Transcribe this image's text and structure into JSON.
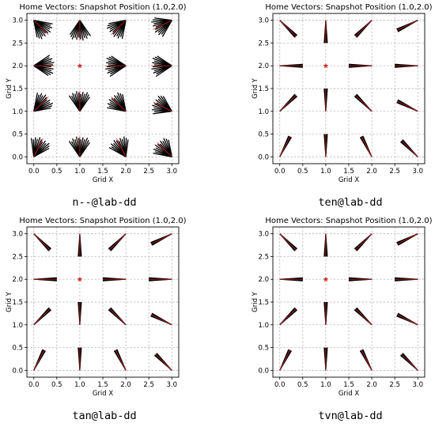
{
  "chart_data": [
    {
      "type": "vector-field",
      "title": "Home Vectors: Snapshot Position (1.0,2.0)",
      "xlabel": "Grid X",
      "ylabel": "Grid Y",
      "caption": "n--@lab-dd",
      "xlim": [
        -0.15,
        3.15
      ],
      "ylim": [
        -0.15,
        3.15
      ],
      "xticks": [
        "0.0",
        "0.5",
        "1.0",
        "1.5",
        "2.0",
        "2.5",
        "3.0"
      ],
      "yticks": [
        "0.0",
        "0.5",
        "1.0",
        "1.5",
        "2.0",
        "2.5",
        "3.0"
      ],
      "grid": true,
      "snapshot": {
        "x": 1.0,
        "y": 2.0
      },
      "grid_points_x": [
        0,
        1,
        2,
        3
      ],
      "grid_points_y": [
        0,
        1,
        2,
        3
      ],
      "spread": "wide",
      "bundle_size": 12,
      "arrow_length": 0.45
    },
    {
      "type": "vector-field",
      "title": "Home Vectors: Snapshot Position (1.0,2.0)",
      "xlabel": "Grid X",
      "ylabel": "Grid Y",
      "caption": "ten@lab-dd",
      "xlim": [
        -0.15,
        3.15
      ],
      "ylim": [
        -0.15,
        3.15
      ],
      "xticks": [
        "0.0",
        "0.5",
        "1.0",
        "1.5",
        "2.0",
        "2.5",
        "3.0"
      ],
      "yticks": [
        "0.0",
        "0.5",
        "1.0",
        "1.5",
        "2.0",
        "2.5",
        "3.0"
      ],
      "grid": true,
      "snapshot": {
        "x": 1.0,
        "y": 2.0
      },
      "grid_points_x": [
        0,
        1,
        2,
        3
      ],
      "grid_points_y": [
        0,
        1,
        2,
        3
      ],
      "spread": "narrow",
      "bundle_size": 6,
      "arrow_length": 0.5
    },
    {
      "type": "vector-field",
      "title": "Home Vectors: Snapshot Position (1.0,2.0)",
      "xlabel": "Grid X",
      "ylabel": "Grid Y",
      "caption": "tan@lab-dd",
      "xlim": [
        -0.15,
        3.15
      ],
      "ylim": [
        -0.15,
        3.15
      ],
      "xticks": [
        "0.0",
        "0.5",
        "1.0",
        "1.5",
        "2.0",
        "2.5",
        "3.0"
      ],
      "yticks": [
        "0.0",
        "0.5",
        "1.0",
        "1.5",
        "2.0",
        "2.5",
        "3.0"
      ],
      "grid": true,
      "snapshot": {
        "x": 1.0,
        "y": 2.0
      },
      "grid_points_x": [
        0,
        1,
        2,
        3
      ],
      "grid_points_y": [
        0,
        1,
        2,
        3
      ],
      "spread": "narrow",
      "bundle_size": 6,
      "arrow_length": 0.5
    },
    {
      "type": "vector-field",
      "title": "Home Vectors: Snapshot Position (1.0,2.0)",
      "xlabel": "Grid X",
      "ylabel": "Grid Y",
      "caption": "tvn@lab-dd",
      "xlim": [
        -0.15,
        3.15
      ],
      "ylim": [
        -0.15,
        3.15
      ],
      "xticks": [
        "0.0",
        "0.5",
        "1.0",
        "1.5",
        "2.0",
        "2.5",
        "3.0"
      ],
      "yticks": [
        "0.0",
        "0.5",
        "1.0",
        "1.5",
        "2.0",
        "2.5",
        "3.0"
      ],
      "grid": true,
      "snapshot": {
        "x": 1.0,
        "y": 2.0
      },
      "grid_points_x": [
        0,
        1,
        2,
        3
      ],
      "grid_points_y": [
        0,
        1,
        2,
        3
      ],
      "spread": "narrow",
      "bundle_size": 6,
      "arrow_length": 0.5
    }
  ],
  "colors": {
    "vector": "#000000",
    "true_direction": "#d62728",
    "snapshot_marker": "#d62728",
    "grid": "#b0b0b0"
  }
}
